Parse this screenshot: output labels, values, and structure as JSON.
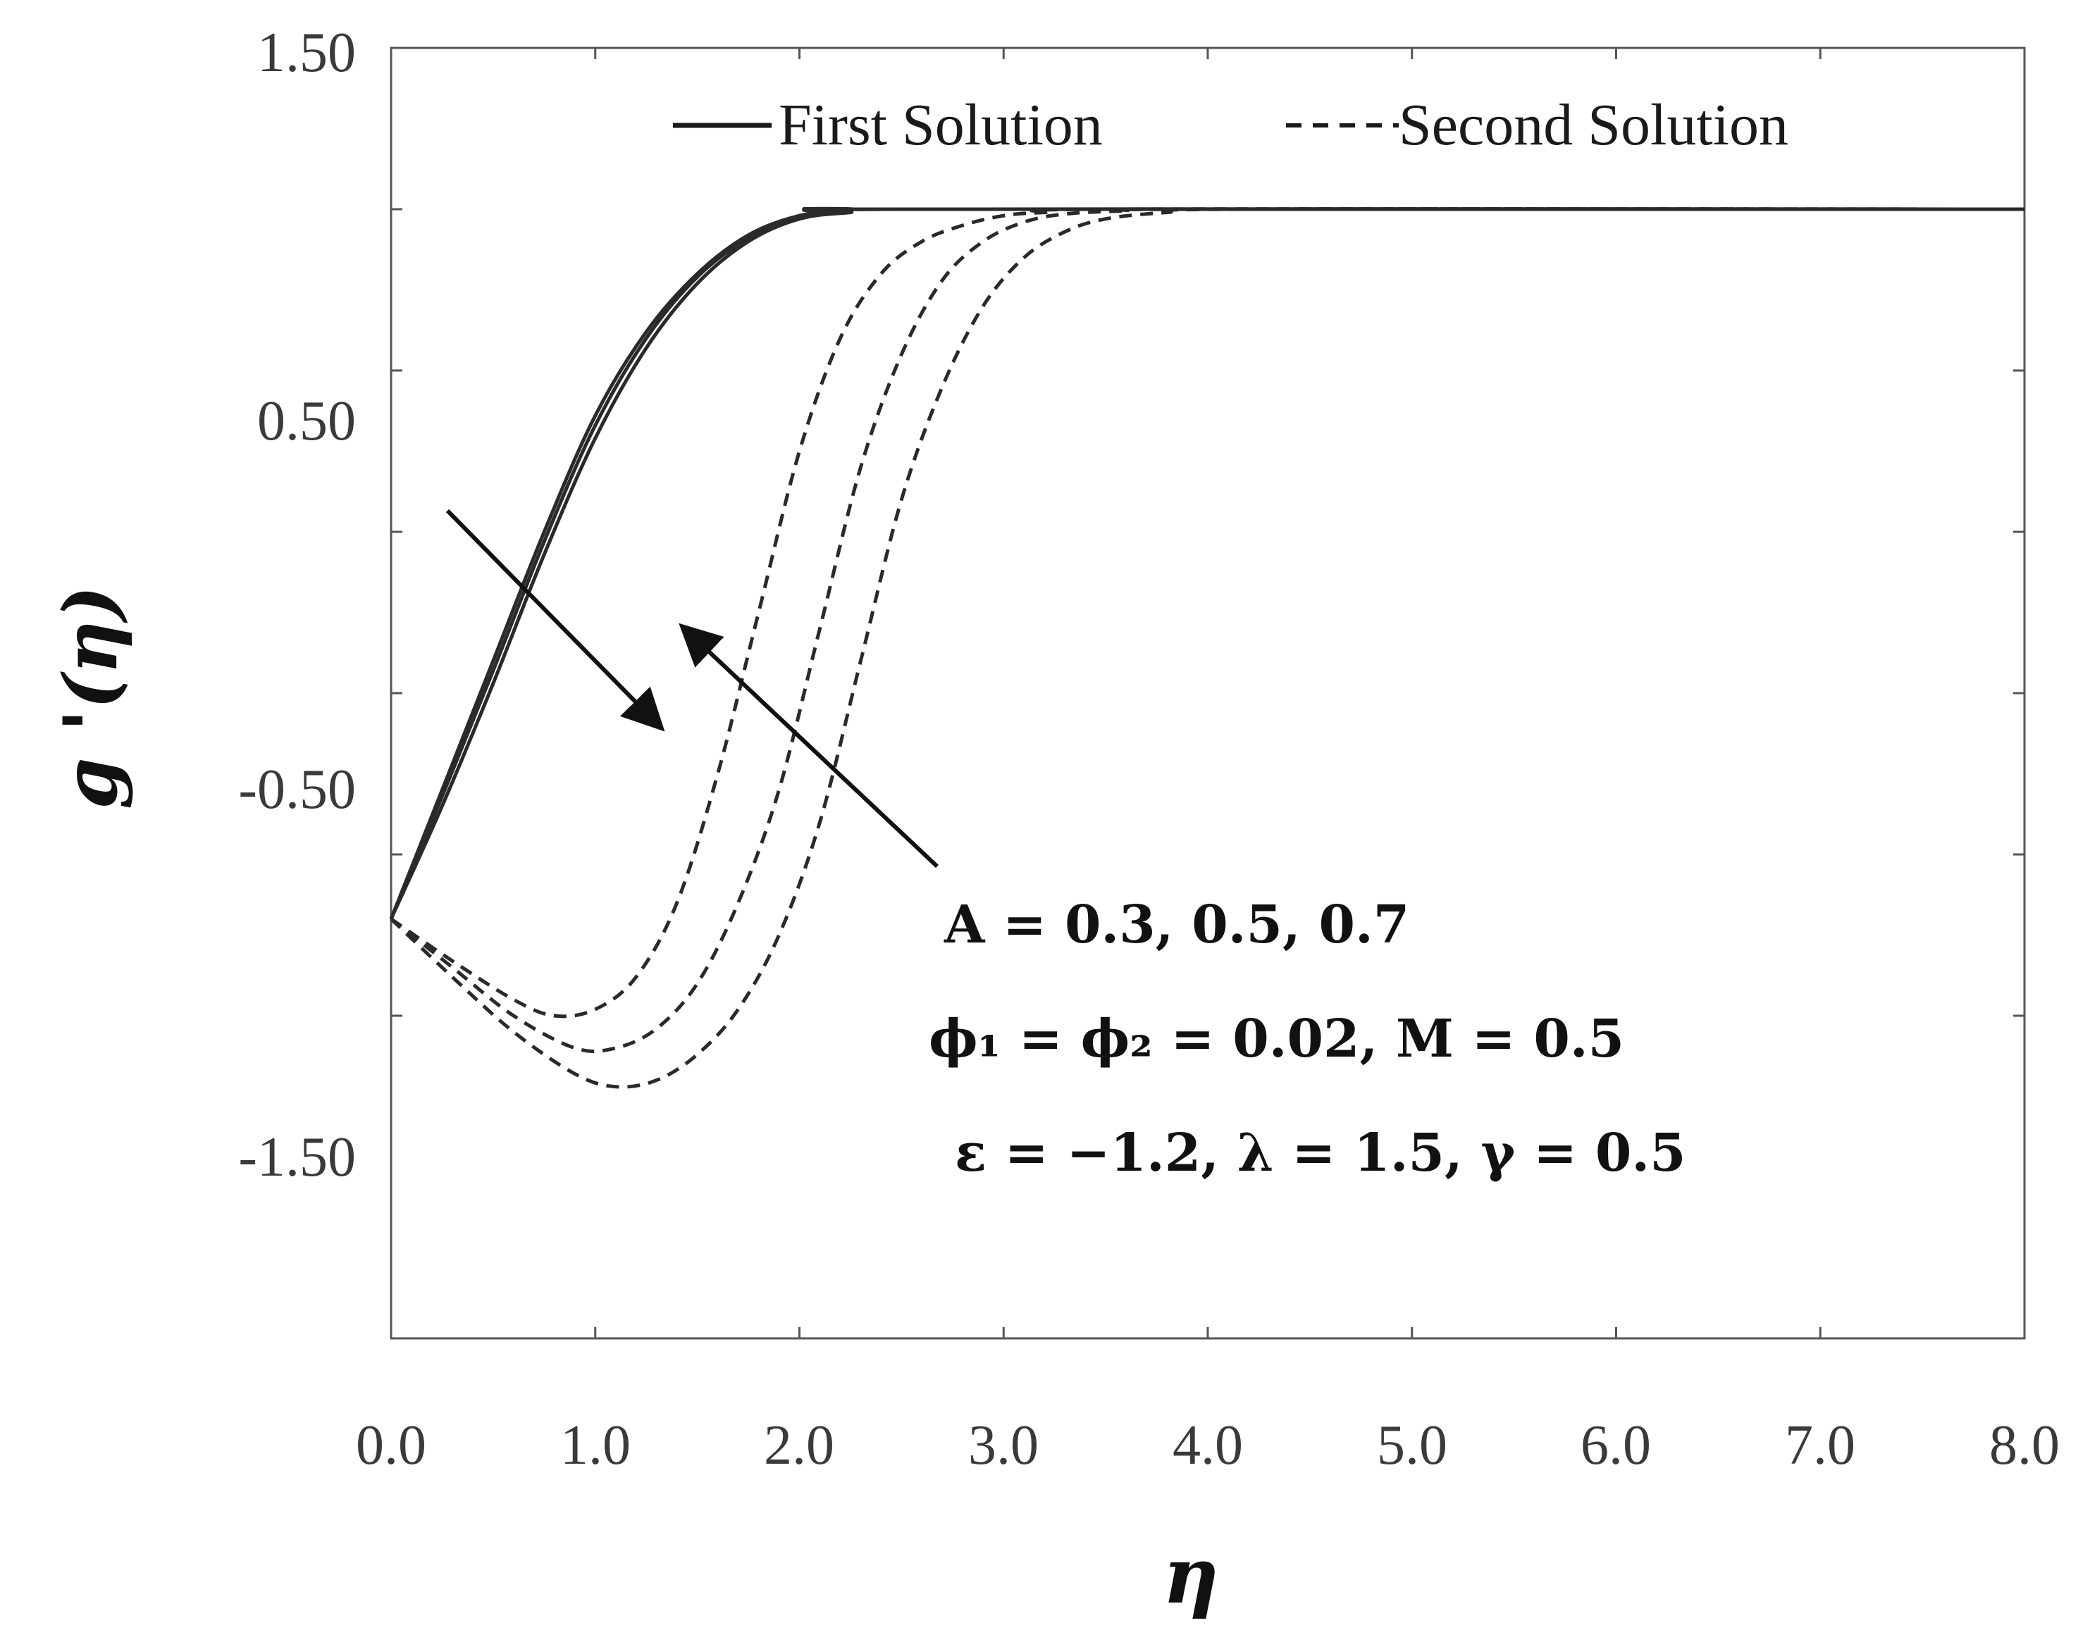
{
  "chart_data": {
    "type": "line",
    "xlabel": "η",
    "ylabel": "g '(η)",
    "xlim": [
      0,
      8
    ],
    "ylim": [
      -2.5,
      1.5
    ],
    "x_ticks": [
      0,
      1,
      2,
      3,
      4,
      5,
      6,
      7,
      8
    ],
    "x_tick_labels": [
      "0.0",
      "1.0",
      "2.0",
      "3.0",
      "4.0",
      "5.0",
      "6.0",
      "7.0",
      "8.0"
    ],
    "y_ticks": [
      -2.5,
      -1.5,
      -1.0,
      -0.5,
      0.0,
      0.5,
      1.0,
      1.5
    ],
    "y_tick_labels": [
      "",
      "-1.50",
      "",
      "-0.50",
      "",
      "0.50",
      "",
      "1.50"
    ],
    "legend": {
      "position": "top",
      "entries": [
        {
          "label": "First Solution",
          "style": "solid"
        },
        {
          "label": "Second Solution",
          "style": "dashed"
        }
      ]
    },
    "annotations": [
      "A = 0.3, 0.5, 0.7",
      "ϕ₁ = ϕ₂ = 0.02, M = 0.5",
      "ε = −1.2, λ = 1.5, γ = 0.5"
    ],
    "series": [
      {
        "solution": "first",
        "style": "solid",
        "A": 0.3,
        "points": [
          [
            0,
            -1.2
          ],
          [
            0.25,
            -0.8
          ],
          [
            0.5,
            -0.4
          ],
          [
            0.75,
            0.0
          ],
          [
            1.0,
            0.36
          ],
          [
            1.25,
            0.62
          ],
          [
            1.5,
            0.8
          ],
          [
            1.75,
            0.92
          ],
          [
            2.0,
            0.98
          ],
          [
            2.25,
            1.0
          ],
          [
            2.5,
            1.0
          ],
          [
            8.0,
            1.0
          ]
        ]
      },
      {
        "solution": "first",
        "style": "solid",
        "A": 0.5,
        "points": [
          [
            0,
            -1.2
          ],
          [
            0.25,
            -0.82
          ],
          [
            0.5,
            -0.43
          ],
          [
            0.75,
            -0.03
          ],
          [
            1.0,
            0.33
          ],
          [
            1.25,
            0.6
          ],
          [
            1.5,
            0.79
          ],
          [
            1.75,
            0.91
          ],
          [
            2.0,
            0.97
          ],
          [
            2.25,
            0.995
          ],
          [
            2.5,
            1.0
          ],
          [
            8.0,
            1.0
          ]
        ]
      },
      {
        "solution": "first",
        "style": "solid",
        "A": 0.7,
        "points": [
          [
            0,
            -1.2
          ],
          [
            0.25,
            -0.85
          ],
          [
            0.5,
            -0.47
          ],
          [
            0.75,
            -0.07
          ],
          [
            1.0,
            0.29
          ],
          [
            1.25,
            0.57
          ],
          [
            1.5,
            0.77
          ],
          [
            1.75,
            0.9
          ],
          [
            2.0,
            0.97
          ],
          [
            2.25,
            0.99
          ],
          [
            2.5,
            1.0
          ],
          [
            8.0,
            1.0
          ]
        ]
      },
      {
        "solution": "second",
        "style": "dashed",
        "A": 0.3,
        "points": [
          [
            0,
            -1.2
          ],
          [
            0.3,
            -1.33
          ],
          [
            0.6,
            -1.45
          ],
          [
            0.8,
            -1.5
          ],
          [
            1.0,
            -1.48
          ],
          [
            1.2,
            -1.38
          ],
          [
            1.4,
            -1.15
          ],
          [
            1.6,
            -0.75
          ],
          [
            1.8,
            -0.25
          ],
          [
            2.0,
            0.25
          ],
          [
            2.2,
            0.6
          ],
          [
            2.4,
            0.8
          ],
          [
            2.6,
            0.9
          ],
          [
            2.8,
            0.95
          ],
          [
            3.0,
            0.98
          ],
          [
            3.2,
            0.99
          ],
          [
            3.6,
            1.0
          ],
          [
            8.0,
            1.0
          ]
        ]
      },
      {
        "solution": "second",
        "style": "dashed",
        "A": 0.5,
        "points": [
          [
            0,
            -1.2
          ],
          [
            0.3,
            -1.35
          ],
          [
            0.6,
            -1.5
          ],
          [
            0.9,
            -1.6
          ],
          [
            1.1,
            -1.6
          ],
          [
            1.3,
            -1.54
          ],
          [
            1.5,
            -1.4
          ],
          [
            1.7,
            -1.15
          ],
          [
            1.9,
            -0.8
          ],
          [
            2.1,
            -0.3
          ],
          [
            2.3,
            0.2
          ],
          [
            2.5,
            0.55
          ],
          [
            2.7,
            0.78
          ],
          [
            2.9,
            0.9
          ],
          [
            3.1,
            0.96
          ],
          [
            3.3,
            0.985
          ],
          [
            3.6,
            0.995
          ],
          [
            4.0,
            1.0
          ],
          [
            8.0,
            1.0
          ]
        ]
      },
      {
        "solution": "second",
        "style": "dashed",
        "A": 0.7,
        "points": [
          [
            0,
            -1.2
          ],
          [
            0.3,
            -1.38
          ],
          [
            0.6,
            -1.55
          ],
          [
            0.9,
            -1.68
          ],
          [
            1.1,
            -1.72
          ],
          [
            1.3,
            -1.7
          ],
          [
            1.5,
            -1.62
          ],
          [
            1.7,
            -1.48
          ],
          [
            1.9,
            -1.25
          ],
          [
            2.1,
            -0.9
          ],
          [
            2.3,
            -0.4
          ],
          [
            2.5,
            0.1
          ],
          [
            2.7,
            0.45
          ],
          [
            2.9,
            0.7
          ],
          [
            3.1,
            0.85
          ],
          [
            3.3,
            0.93
          ],
          [
            3.5,
            0.97
          ],
          [
            3.8,
            0.99
          ],
          [
            4.2,
            1.0
          ],
          [
            8.0,
            1.0
          ]
        ]
      }
    ]
  }
}
